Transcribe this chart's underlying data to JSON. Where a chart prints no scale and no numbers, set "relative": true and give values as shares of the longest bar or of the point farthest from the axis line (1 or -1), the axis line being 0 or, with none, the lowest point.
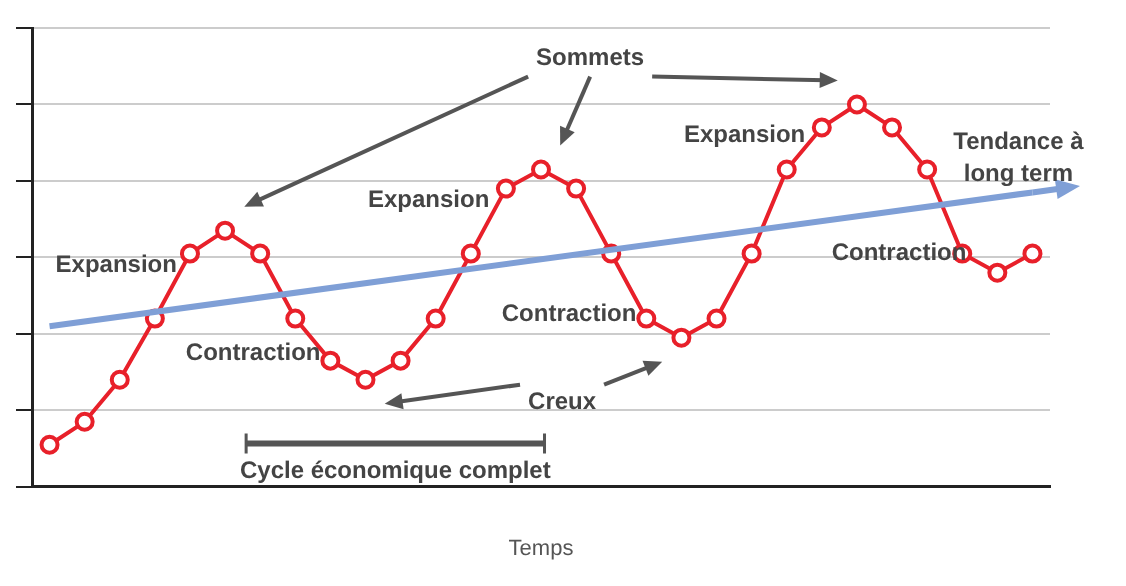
{
  "chart_data": {
    "type": "line",
    "relative": true,
    "xlabel": "Temps",
    "categories": [
      null,
      null,
      null,
      null,
      null,
      null,
      null,
      null,
      null,
      null,
      null,
      null,
      null,
      null,
      null,
      null,
      null,
      null,
      null,
      null,
      null,
      null,
      null,
      null,
      null,
      null,
      null,
      null,
      null
    ],
    "series": [
      {
        "color": "#e8202a",
        "marker": "circle",
        "values": [
          0.11,
          0.17,
          0.28,
          0.44,
          0.61,
          0.67,
          0.61,
          0.44,
          0.33,
          0.28,
          0.33,
          0.44,
          0.61,
          0.78,
          0.83,
          0.78,
          0.61,
          0.44,
          0.39,
          0.44,
          0.61,
          0.83,
          0.94,
          1,
          0.94,
          0.83,
          0.61,
          0.56,
          0.61
        ]
      },
      {
        "color": "#7f9fd6",
        "marker": "none",
        "values": [
          0.42,
          null,
          null,
          null,
          null,
          null,
          null,
          null,
          null,
          null,
          null,
          null,
          null,
          null,
          null,
          null,
          null,
          null,
          null,
          null,
          null,
          null,
          null,
          null,
          null,
          null,
          null,
          null,
          0.77
        ]
      }
    ],
    "annotations": [
      "Sommets",
      "Creux",
      "Expansion",
      "Expansion",
      "Expansion",
      "Contraction",
      "Contraction",
      "Contraction",
      "Tendance à\nlong term",
      "Cycle économique complet"
    ],
    "grid": "y",
    "legend": false
  }
}
